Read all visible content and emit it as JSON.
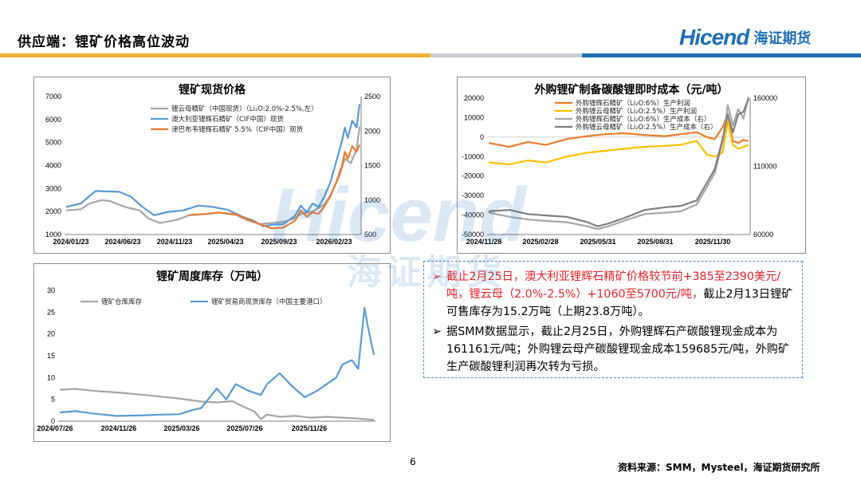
{
  "slide": {
    "title": "供应端：锂矿价格高位波动",
    "logo_word": "Hicend",
    "logo_cn": "海证期货",
    "page_number": "6",
    "source": "资料来源：SMM，Mysteel，海证期货研究所",
    "watermark_word": "Hicend",
    "watermark_cn": "海证期货"
  },
  "text": {
    "b1": "截止2月25日，澳大利亚锂辉石精矿价格较节前+385至2390美元/吨，锂云母（2.0%-2.5%）+1060至5700元/吨，",
    "b1_rest": "截止2月13日锂矿可售库存为15.2万吨（上期23.8万吨）。",
    "b2": "据SMM数据显示，截止2月25日，外购锂辉石产碳酸锂现金成本为161161元/吨；外购锂云母产碳酸锂现金成本159685元/吨，外购矿生产碳酸锂利润再次转为亏损。"
  },
  "colors": {
    "gray": "#a6a6a6",
    "blue": "#5b9bd5",
    "orange": "#ed7d31",
    "yellow": "#ffc000",
    "darkgray": "#7f7f7f"
  },
  "chart_data": [
    {
      "type": "line",
      "title": "锂矿现货价格",
      "x_ticks": [
        "2024/01/23",
        "2024/06/23",
        "2024/11/23",
        "2025/04/23",
        "2025/09/23",
        "2026/02/23"
      ],
      "ylim_left": [
        1000,
        7000
      ],
      "y_ticks_left": [
        "1000",
        "2000",
        "3000",
        "4000",
        "5000",
        "6000",
        "7000"
      ],
      "ylim_right": [
        500,
        2500
      ],
      "y_ticks_right": [
        "500",
        "1000",
        "1500",
        "2000",
        "2500"
      ],
      "series": [
        {
          "name": "锂云母精矿（中国现货）（Li₂O:2.0%-2.5%,左）",
          "axis": "left",
          "color": "#a6a6a6",
          "x": [
            0,
            0.05,
            0.08,
            0.12,
            0.15,
            0.2,
            0.25,
            0.28,
            0.32,
            0.38,
            0.42,
            0.48,
            0.52,
            0.58,
            0.62,
            0.66,
            0.7,
            0.74,
            0.78,
            0.8,
            0.84,
            0.88,
            0.9,
            0.93,
            0.95,
            0.97,
            0.99,
            1.0
          ],
          "values": [
            2050,
            2100,
            2350,
            2500,
            2450,
            2200,
            2050,
            1700,
            1500,
            1650,
            1850,
            1900,
            1950,
            1850,
            1600,
            1450,
            1500,
            1550,
            1700,
            1900,
            2000,
            2300,
            2700,
            3500,
            4300,
            4100,
            4700,
            5700
          ]
        },
        {
          "name": "澳大利亚锂辉石精矿（CIF中国）现货",
          "axis": "right",
          "color": "#5b9bd5",
          "x": [
            0,
            0.05,
            0.1,
            0.18,
            0.22,
            0.26,
            0.3,
            0.35,
            0.4,
            0.45,
            0.5,
            0.55,
            0.6,
            0.64,
            0.67,
            0.7,
            0.74,
            0.78,
            0.8,
            0.82,
            0.84,
            0.86,
            0.88,
            0.9,
            0.92,
            0.94,
            0.95,
            0.96,
            0.975,
            0.99,
            1.0
          ],
          "values": [
            900,
            950,
            1130,
            1120,
            1050,
            900,
            780,
            830,
            850,
            920,
            900,
            860,
            760,
            700,
            620,
            640,
            650,
            770,
            920,
            820,
            950,
            900,
            1050,
            1250,
            1550,
            1850,
            2050,
            1900,
            2150,
            2050,
            2390
          ]
        },
        {
          "name": "津巴布韦锂辉石精矿 5.5%（CIF中国）现货",
          "axis": "right",
          "color": "#ed7d31",
          "x": [
            0.42,
            0.48,
            0.52,
            0.58,
            0.62,
            0.66,
            0.7,
            0.74,
            0.78,
            0.8,
            0.82,
            0.84,
            0.86,
            0.88,
            0.9,
            0.92,
            0.94,
            0.95,
            0.96,
            0.975,
            0.99,
            1.0
          ],
          "values": [
            780,
            800,
            820,
            790,
            720,
            650,
            590,
            600,
            700,
            850,
            760,
            820,
            800,
            900,
            1050,
            1250,
            1500,
            1700,
            1600,
            1780,
            1700,
            1800
          ]
        }
      ]
    },
    {
      "type": "line",
      "title": "外购锂矿制备碳酸锂即时成本（元/吨）",
      "x_ticks": [
        "2024/11/28",
        "2025/02/28",
        "2025/05/31",
        "2025/08/31",
        "2025/11/30"
      ],
      "ylim_left": [
        -50000,
        20000
      ],
      "y_ticks_left": [
        "-50000",
        "-40000",
        "-30000",
        "-20000",
        "-10000",
        "0",
        "10000",
        "20000"
      ],
      "ylim_right": [
        60000,
        160000
      ],
      "y_ticks_right": [
        "60000",
        "110000",
        "160000"
      ],
      "series": [
        {
          "name": "外购锂辉石精矿（Li₂O:6%）生产利润",
          "axis": "left",
          "color": "#ed7d31",
          "x": [
            0,
            0.08,
            0.15,
            0.22,
            0.3,
            0.38,
            0.45,
            0.52,
            0.6,
            0.68,
            0.74,
            0.8,
            0.84,
            0.87,
            0.9,
            0.92,
            0.94,
            0.96,
            0.98,
            1.0
          ],
          "values": [
            -3000,
            -5000,
            -2500,
            -4000,
            -1000,
            500,
            1500,
            2000,
            1000,
            500,
            1500,
            2500,
            0,
            -1000,
            5000,
            12000,
            -2000,
            -3000,
            -1500,
            -2000
          ]
        },
        {
          "name": "外购锂云母精矿（Li₂O:2.5%）生产利润",
          "axis": "left",
          "color": "#ffc000",
          "x": [
            0,
            0.08,
            0.15,
            0.22,
            0.3,
            0.38,
            0.45,
            0.52,
            0.6,
            0.68,
            0.74,
            0.8,
            0.84,
            0.87,
            0.9,
            0.92,
            0.94,
            0.96,
            0.98,
            1.0
          ],
          "values": [
            -13000,
            -14000,
            -12000,
            -13000,
            -10000,
            -8000,
            -7000,
            -6000,
            -5000,
            -4500,
            -4000,
            -2000,
            -9000,
            -10000,
            -8000,
            8000,
            -4000,
            -6000,
            -5000,
            -4000
          ]
        },
        {
          "name": "外购锂辉石精矿（Li₂O:6%）生产成本（右）",
          "axis": "right",
          "color": "#a6a6a6",
          "x": [
            0,
            0.08,
            0.15,
            0.22,
            0.3,
            0.38,
            0.42,
            0.46,
            0.52,
            0.6,
            0.68,
            0.74,
            0.8,
            0.84,
            0.87,
            0.9,
            0.92,
            0.94,
            0.96,
            0.98,
            1.0
          ],
          "values": [
            76000,
            73000,
            71000,
            70000,
            69000,
            66000,
            64000,
            66000,
            70000,
            75000,
            76000,
            77000,
            82000,
            95000,
            105000,
            128000,
            155000,
            140000,
            152000,
            145000,
            161161
          ]
        },
        {
          "name": "外购锂云母精矿（Li₂O:2.5%）生产成本（右）",
          "axis": "right",
          "color": "#7f7f7f",
          "x": [
            0,
            0.08,
            0.15,
            0.22,
            0.3,
            0.38,
            0.42,
            0.46,
            0.52,
            0.6,
            0.68,
            0.74,
            0.8,
            0.84,
            0.87,
            0.9,
            0.92,
            0.94,
            0.96,
            0.98,
            1.0
          ],
          "values": [
            77000,
            78000,
            75000,
            74000,
            73000,
            69000,
            66000,
            68000,
            72000,
            78000,
            80000,
            81000,
            85000,
            98000,
            108000,
            130000,
            148000,
            135000,
            148000,
            150000,
            159685
          ]
        }
      ]
    },
    {
      "type": "line",
      "title": "锂矿周度库存（万吨）",
      "x_ticks": [
        "2024/07/26",
        "2024/11/26",
        "2025/03/26",
        "2025/07/26",
        "2025/11/26"
      ],
      "ylim": [
        0,
        30
      ],
      "y_ticks": [
        "0",
        "5",
        "10",
        "15",
        "20",
        "25",
        "30"
      ],
      "series": [
        {
          "name": "锂矿仓库库存",
          "color": "#a6a6a6",
          "x": [
            0,
            0.05,
            0.1,
            0.2,
            0.3,
            0.38,
            0.45,
            0.5,
            0.55,
            0.58,
            0.62,
            0.64,
            0.66,
            0.7,
            0.75,
            0.8,
            0.85,
            0.9,
            0.95,
            1.0
          ],
          "values": [
            7.2,
            7.4,
            7,
            6.5,
            5.8,
            5.2,
            4.5,
            4.3,
            4.6,
            3.5,
            2.2,
            0.5,
            1.5,
            1,
            1.2,
            0.8,
            1,
            0.8,
            0.6,
            0.3
          ]
        },
        {
          "name": "锂矿贸易商现货库存（中国主要港口）",
          "color": "#5b9bd5",
          "x": [
            0,
            0.05,
            0.1,
            0.18,
            0.25,
            0.32,
            0.38,
            0.42,
            0.45,
            0.5,
            0.53,
            0.56,
            0.6,
            0.64,
            0.66,
            0.7,
            0.74,
            0.78,
            0.82,
            0.86,
            0.88,
            0.9,
            0.93,
            0.95,
            0.97,
            0.98,
            1.0
          ],
          "values": [
            2,
            2.3,
            1.8,
            1.2,
            1.3,
            1.5,
            1.6,
            2.5,
            3,
            7.5,
            5,
            8.5,
            7,
            6,
            8.5,
            11,
            8,
            5.5,
            7,
            9,
            10,
            13,
            14,
            12,
            26,
            22,
            15.2
          ]
        }
      ]
    }
  ]
}
